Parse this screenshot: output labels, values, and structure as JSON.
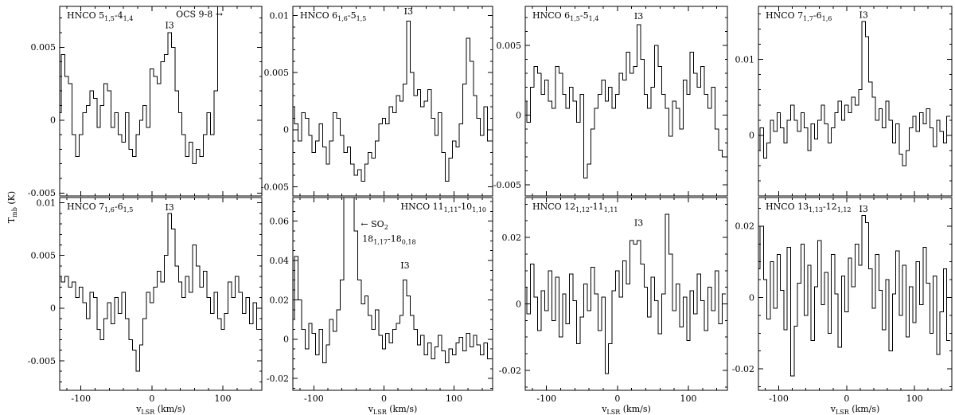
{
  "chart_data": {
    "type": "line",
    "subtype": "step-histogram-spectra",
    "grid": "off",
    "legend": "none",
    "y_axis_title": {
      "pre": "T",
      "sub": "mb",
      "post": " (K)"
    },
    "x_axis_title": {
      "pre": "v",
      "sub": "LSR",
      "post": " (km/s)"
    },
    "x": {
      "min": -130,
      "max": 155,
      "major_ticks": [
        -100,
        0,
        100
      ],
      "tick_labels": [
        "-100",
        "0",
        "100"
      ],
      "minor_step": 20
    },
    "panels": [
      {
        "name": "hnco-515-414",
        "row": 0,
        "col": 0,
        "title": [
          {
            "t": "HNCO 5"
          },
          {
            "t": "1,5",
            "sub": true
          },
          {
            "t": "-4"
          },
          {
            "t": "1,4",
            "sub": true
          }
        ],
        "title_align": "left",
        "ylim": [
          -0.0052,
          0.0078
        ],
        "y_minor_step": 0.001,
        "y_major_ticks": [
          {
            "v": -0.005,
            "label": "-0.005"
          },
          {
            "v": 0,
            "label": "0"
          },
          {
            "v": 0.005,
            "label": "0.005"
          }
        ],
        "annotations": [
          {
            "name": "i3-label",
            "segments": [
              {
                "t": "I3"
              }
            ],
            "x": 25,
            "y": 0.0063,
            "anchor": "middle"
          },
          {
            "name": "ocs-line-label",
            "segments": [
              {
                "t": "OCS 9-8 →"
              }
            ],
            "x": 100,
            "y": 0.00705,
            "anchor": "end"
          }
        ],
        "x0": -130,
        "dx": 5,
        "values": [
          0.0005,
          0.0045,
          0.003,
          0.0025,
          -0.001,
          -0.0025,
          -0.001,
          0.0005,
          0.001,
          0.002,
          0.0015,
          -0.0005,
          0.001,
          0.0025,
          0.002,
          -0.0005,
          0.0005,
          -0.001,
          -0.0015,
          0.0005,
          -0.002,
          -0.0025,
          -0.001,
          0,
          0.001,
          -0.0005,
          0.0035,
          0.003,
          0.0025,
          0.004,
          0.0045,
          0.006,
          0.005,
          0.002,
          0.0005,
          -0.001,
          -0.0025,
          -0.0015,
          -0.003,
          -0.002,
          -0.0025,
          -0.001,
          0.0005,
          -0.001,
          0.002,
          0.02,
          0.02,
          0.02,
          0.02,
          0.02,
          0.02,
          0.02,
          0.02,
          0.02,
          0.02,
          0.02,
          0.02
        ]
      },
      {
        "name": "hnco-616-515",
        "row": 0,
        "col": 1,
        "title": [
          {
            "t": "HNCO 6"
          },
          {
            "t": "1,6",
            "sub": true
          },
          {
            "t": "-5"
          },
          {
            "t": "1,5",
            "sub": true
          }
        ],
        "title_align": "left",
        "ylim": [
          -0.0058,
          0.0108
        ],
        "y_minor_step": 0.001,
        "y_major_ticks": [
          {
            "v": -0.005,
            "label": "-0.005"
          },
          {
            "v": 0,
            "label": "0"
          },
          {
            "v": 0.005,
            "label": "0.005"
          },
          {
            "v": 0.01,
            "label": "0.01"
          }
        ],
        "annotations": [
          {
            "name": "i3-label",
            "segments": [
              {
                "t": "I3"
              }
            ],
            "x": 35,
            "y": 0.0101,
            "anchor": "middle"
          }
        ],
        "x0": -130,
        "dx": 5,
        "values": [
          0.002,
          0.0005,
          -0.001,
          0.0015,
          0.001,
          -0.0005,
          -0.002,
          -0.001,
          0.0005,
          -0.0015,
          -0.003,
          -0.001,
          0.0015,
          0.001,
          -0.0005,
          -0.002,
          -0.0015,
          -0.003,
          -0.004,
          -0.0035,
          -0.0045,
          -0.003,
          -0.002,
          -0.0025,
          -0.001,
          0.0005,
          0.001,
          0.0005,
          0.002,
          0.0015,
          0.003,
          0.0025,
          0.004,
          0.0095,
          0.005,
          0.003,
          0.0035,
          0.002,
          0.0025,
          0.0035,
          0.001,
          -0.0005,
          0.0015,
          -0.002,
          -0.0045,
          -0.0025,
          -0.001,
          -0.0015,
          0.0005,
          0.004,
          0.008,
          0.006,
          0.003,
          0.001,
          -0.0005,
          0.002,
          -0.001
        ]
      },
      {
        "name": "hnco-615-514",
        "row": 0,
        "col": 2,
        "title": [
          {
            "t": "HNCO 6"
          },
          {
            "t": "1,5",
            "sub": true
          },
          {
            "t": "-5"
          },
          {
            "t": "1,4",
            "sub": true
          }
        ],
        "title_align": "left",
        "ylim": [
          -0.0058,
          0.0078
        ],
        "y_minor_step": 0.001,
        "y_major_ticks": [
          {
            "v": -0.005,
            "label": "-0.005"
          },
          {
            "v": 0,
            "label": "0"
          },
          {
            "v": 0.005,
            "label": "0.005"
          }
        ],
        "annotations": [
          {
            "name": "i3-label",
            "segments": [
              {
                "t": "I3"
              }
            ],
            "x": 30,
            "y": 0.0069,
            "anchor": "middle"
          }
        ],
        "x0": -130,
        "dx": 5,
        "values": [
          0.001,
          -0.0005,
          0.002,
          0.0035,
          0.003,
          0.0015,
          0.0025,
          0.001,
          0.0005,
          0.0035,
          0.003,
          0.0015,
          0.0005,
          0.002,
          0.001,
          -0.0005,
          0.0015,
          -0.0045,
          -0.0035,
          -0.001,
          0.0005,
          0.0015,
          0.0025,
          0.001,
          0.002,
          0.0005,
          0.0015,
          0.003,
          0.0025,
          0.0045,
          0.003,
          0.0035,
          0.0065,
          0.004,
          0.0015,
          0.0005,
          0.002,
          0.005,
          0.0035,
          0.0015,
          0.0005,
          -0.0015,
          0.001,
          0.0005,
          -0.001,
          0.0025,
          0.0015,
          0.0045,
          0.003,
          0.002,
          0.0035,
          0.0015,
          0.0005,
          0.002,
          -0.001,
          -0.0025,
          -0.003
        ]
      },
      {
        "name": "hnco-717-616",
        "row": 0,
        "col": 3,
        "title": [
          {
            "t": "HNCO 7"
          },
          {
            "t": "1,7",
            "sub": true
          },
          {
            "t": "-6"
          },
          {
            "t": "1,6",
            "sub": true
          }
        ],
        "title_align": "left",
        "ylim": [
          -0.008,
          0.017
        ],
        "y_minor_step": 0.002,
        "y_major_ticks": [
          {
            "v": 0,
            "label": "0"
          },
          {
            "v": 0.01,
            "label": "0.01"
          }
        ],
        "annotations": [
          {
            "name": "i3-label",
            "segments": [
              {
                "t": "I3"
              }
            ],
            "x": 25,
            "y": 0.0155,
            "anchor": "middle"
          }
        ],
        "x0": -130,
        "dx": 5,
        "values": [
          -0.002,
          0.001,
          -0.003,
          -0.001,
          0.002,
          0.0005,
          0.003,
          0.001,
          -0.001,
          0.002,
          0.004,
          0.002,
          0.0005,
          0.003,
          0.001,
          -0.002,
          0.0015,
          -0.0005,
          0.002,
          0.004,
          0.0015,
          -0.001,
          0.001,
          0.003,
          0.0045,
          0.002,
          0.004,
          0.003,
          0.005,
          0.004,
          0.006,
          0.015,
          0.013,
          0.007,
          0.005,
          0.002,
          0.0035,
          0.001,
          0.0045,
          0.002,
          -0.001,
          0.0015,
          -0.0025,
          -0.004,
          -0.002,
          0.001,
          0.0025,
          0.0005,
          0.003,
          0.0015,
          0.0035,
          0.001,
          -0.0015,
          0.002,
          0.0005,
          -0.001,
          0.0025
        ]
      },
      {
        "name": "hnco-716-615",
        "row": 1,
        "col": 0,
        "title": [
          {
            "t": "HNCO 7"
          },
          {
            "t": "1,6",
            "sub": true
          },
          {
            "t": "-6"
          },
          {
            "t": "1,5",
            "sub": true
          }
        ],
        "title_align": "left",
        "ylim": [
          -0.0078,
          0.0105
        ],
        "y_minor_step": 0.001,
        "y_major_ticks": [
          {
            "v": -0.005,
            "label": "-0.005"
          },
          {
            "v": 0,
            "label": "0"
          },
          {
            "v": 0.005,
            "label": "0.005"
          },
          {
            "v": 0.01,
            "label": "0.01"
          }
        ],
        "annotations": [
          {
            "name": "i3-label",
            "segments": [
              {
                "t": "I3"
              }
            ],
            "x": 25,
            "y": 0.0093,
            "anchor": "middle"
          }
        ],
        "x0": -130,
        "dx": 5,
        "values": [
          0.003,
          0.0025,
          0.003,
          0.002,
          0.0025,
          0.001,
          0.002,
          0.0005,
          -0.001,
          0.0015,
          0.001,
          -0.002,
          -0.003,
          -0.001,
          0.0005,
          -0.0015,
          0.001,
          -0.0005,
          0.0015,
          -0.001,
          -0.003,
          -0.004,
          -0.006,
          -0.0035,
          -0.001,
          0.0015,
          0.0005,
          0.002,
          0.0035,
          0.0025,
          0.005,
          0.009,
          0.0075,
          0.004,
          0.0025,
          0.001,
          0.003,
          0.0015,
          0.006,
          0.004,
          0.002,
          0.0035,
          0.001,
          -0.0005,
          0.0015,
          -0.001,
          -0.002,
          -0.0005,
          0.0025,
          0.001,
          0.003,
          0.0015,
          -0.0005,
          0.001,
          -0.0015,
          0.0005,
          -0.002
        ]
      },
      {
        "name": "hnco-11111-10110",
        "row": 1,
        "col": 1,
        "title": [
          {
            "t": "HNCO 11"
          },
          {
            "t": "1,11",
            "sub": true
          },
          {
            "t": "-10"
          },
          {
            "t": "1,10",
            "sub": true
          }
        ],
        "title_align": "right",
        "ylim": [
          -0.026,
          0.072
        ],
        "y_minor_step": 0.005,
        "y_major_ticks": [
          {
            "v": -0.02,
            "label": "-0.02"
          },
          {
            "v": 0,
            "label": "0"
          },
          {
            "v": 0.02,
            "label": "0.02"
          },
          {
            "v": 0.04,
            "label": "0.04"
          },
          {
            "v": 0.06,
            "label": "0.06"
          }
        ],
        "annotations": [
          {
            "name": "so2-line-label",
            "segments": [
              {
                "t": "← SO"
              },
              {
                "t": "2",
                "sub": true
              }
            ],
            "x": -33,
            "y": 0.057,
            "anchor": "start"
          },
          {
            "name": "so2-transition-label",
            "segments": [
              {
                "t": "18"
              },
              {
                "t": "1,17",
                "sub": true
              },
              {
                "t": "-18"
              },
              {
                "t": "0,18",
                "sub": true
              }
            ],
            "x": -31,
            "y": 0.0495,
            "anchor": "start"
          },
          {
            "name": "i3-label",
            "segments": [
              {
                "t": "I3"
              }
            ],
            "x": 30,
            "y": 0.036,
            "anchor": "middle"
          }
        ],
        "x0": -130,
        "dx": 5,
        "values": [
          0.01,
          0.042,
          0.02,
          0.005,
          -0.005,
          0.008,
          0.003,
          -0.008,
          0.005,
          -0.012,
          -0.003,
          0.01,
          0.004,
          0.015,
          0.03,
          0.09,
          0.12,
          0.13,
          0.055,
          0.03,
          0.018,
          0.022,
          0.012,
          0.005,
          0.015,
          0.002,
          -0.005,
          0.003,
          -0.002,
          0.005,
          0.008,
          0.012,
          0.03,
          0.022,
          0.012,
          0.005,
          -0.003,
          0.002,
          -0.008,
          -0.002,
          -0.01,
          -0.004,
          0.002,
          -0.006,
          -0.012,
          -0.005,
          -0.008,
          -0.002,
          0.001,
          -0.006,
          0.003,
          -0.004,
          0.002,
          -0.003,
          -0.008,
          -0.002,
          -0.01
        ]
      },
      {
        "name": "hnco-12112-11111",
        "row": 1,
        "col": 2,
        "title": [
          {
            "t": "HNCO 12"
          },
          {
            "t": "1,12",
            "sub": true
          },
          {
            "t": "-11"
          },
          {
            "t": "1,11",
            "sub": true
          }
        ],
        "title_align": "left",
        "ylim": [
          -0.026,
          0.032
        ],
        "y_minor_step": 0.005,
        "y_major_ticks": [
          {
            "v": -0.02,
            "label": "-0.02"
          },
          {
            "v": 0,
            "label": "0"
          },
          {
            "v": 0.02,
            "label": "0.02"
          }
        ],
        "annotations": [
          {
            "name": "i3-label",
            "segments": [
              {
                "t": "I3"
              }
            ],
            "x": 30,
            "y": 0.0235,
            "anchor": "middle"
          }
        ],
        "x0": -130,
        "dx": 5,
        "values": [
          0.005,
          -0.003,
          0.012,
          0.002,
          -0.008,
          0.004,
          -0.002,
          0.01,
          -0.005,
          0.008,
          -0.01,
          0.003,
          -0.006,
          0.009,
          0.001,
          -0.012,
          -0.004,
          0.006,
          -0.002,
          0.011,
          0.003,
          -0.008,
          0.002,
          -0.021,
          -0.012,
          0.004,
          0.01,
          0.002,
          0.013,
          0.006,
          0.019,
          0.018,
          0.019,
          0.012,
          0.005,
          -0.004,
          0.008,
          0.001,
          -0.009,
          0.003,
          0.027,
          0.015,
          -0.002,
          0.006,
          -0.007,
          0.002,
          -0.011,
          0.004,
          -0.003,
          0.009,
          0.001,
          -0.008,
          0.005,
          -0.002,
          0.01,
          -0.006,
          0.003
        ]
      },
      {
        "name": "hnco-13113-12112",
        "row": 1,
        "col": 3,
        "title": [
          {
            "t": "HNCO 13"
          },
          {
            "t": "1,13",
            "sub": true
          },
          {
            "t": "-12"
          },
          {
            "t": "1,12",
            "sub": true
          }
        ],
        "title_align": "left",
        "ylim": [
          -0.026,
          0.028
        ],
        "y_minor_step": 0.005,
        "y_major_ticks": [
          {
            "v": -0.02,
            "label": "-0.02"
          },
          {
            "v": 0,
            "label": "0"
          },
          {
            "v": 0.02,
            "label": "0.02"
          }
        ],
        "annotations": [
          {
            "name": "i3-label",
            "segments": [
              {
                "t": "I3"
              }
            ],
            "x": 25,
            "y": 0.024,
            "anchor": "middle"
          }
        ],
        "x0": -130,
        "dx": 5,
        "values": [
          0.008,
          0.02,
          0.005,
          -0.006,
          0.01,
          -0.003,
          0.012,
          0.002,
          -0.009,
          0.014,
          -0.022,
          -0.008,
          0.004,
          0.015,
          -0.005,
          0.009,
          -0.012,
          0.003,
          0.016,
          -0.002,
          0.007,
          -0.01,
          0.012,
          0.001,
          -0.014,
          0.006,
          -0.004,
          0.011,
          0.003,
          0.015,
          0.009,
          0.023,
          0.021,
          0.008,
          -0.003,
          0.012,
          0.002,
          -0.009,
          0.005,
          -0.015,
          0.001,
          0.013,
          -0.005,
          0.009,
          -0.011,
          0.003,
          -0.007,
          0.01,
          -0.002,
          0.014,
          0.004,
          -0.01,
          0.006,
          -0.016,
          -0.004,
          0.008,
          -0.012
        ]
      }
    ]
  }
}
